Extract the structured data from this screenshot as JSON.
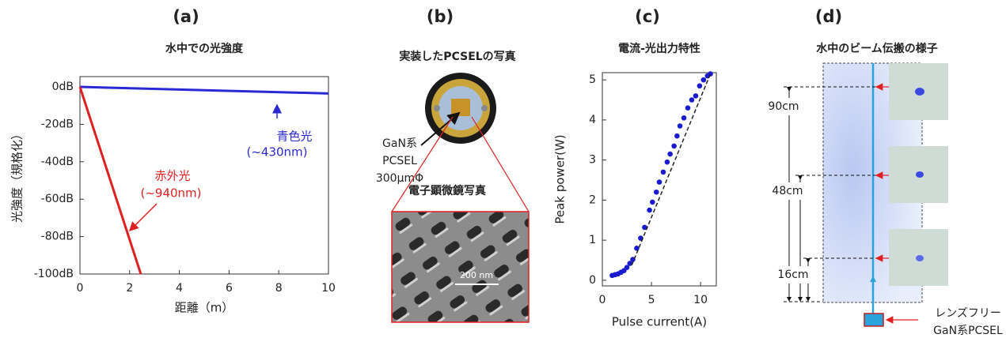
{
  "panel_labels": [
    "(a)",
    "(b)",
    "(c)",
    "(d)"
  ],
  "chart_data": [
    {
      "type": "line",
      "title": "水中での光強度",
      "x_label": "距離（m）",
      "y_label": "光強度（規格化）",
      "xlim": [
        0,
        10
      ],
      "xticks": [
        0,
        2,
        4,
        6,
        8,
        10
      ],
      "ylim": [
        -100,
        5.5
      ],
      "yticks": [
        {
          "value": 0,
          "label": "0dB"
        },
        {
          "value": -20,
          "label": "-20dB"
        },
        {
          "value": -40,
          "label": "-40dB"
        },
        {
          "value": -60,
          "label": "-60dB"
        },
        {
          "value": -80,
          "label": "-80dB"
        },
        {
          "value": -100,
          "label": "-100dB"
        }
      ],
      "series": [
        {
          "name": "青色光",
          "note": "(~430nm)",
          "color": "#2a2ad4",
          "x": [
            0,
            10
          ],
          "values": [
            0,
            -3.5
          ]
        },
        {
          "name": "赤外光",
          "note": "(~940nm)",
          "color": "#e02020",
          "x": [
            0,
            2.45
          ],
          "values": [
            0,
            -100
          ]
        }
      ]
    },
    {
      "type": "scatter",
      "title": "電流-光出力特性",
      "x_label": "Pulse current(A)",
      "y_label": "Peak power(W)",
      "xlim": [
        0,
        11.6
      ],
      "xticks": [
        0,
        5,
        10
      ],
      "ylim": [
        -0.14,
        5.18
      ],
      "yticks": [
        0,
        1,
        2,
        3,
        4,
        5
      ],
      "series": [
        {
          "color": "#1a1ad0",
          "x": [
            1.0,
            1.3,
            1.6,
            1.9,
            2.2,
            2.5,
            2.8,
            3.1,
            3.5,
            3.9,
            4.3,
            4.8,
            5.1,
            5.5,
            5.8,
            6.2,
            6.6,
            6.9,
            7.3,
            7.6,
            7.9,
            8.3,
            8.7,
            9.1,
            9.5,
            9.9,
            10.3,
            10.7,
            11.0
          ],
          "values": [
            0.12,
            0.14,
            0.16,
            0.2,
            0.24,
            0.32,
            0.42,
            0.52,
            0.8,
            1.05,
            1.32,
            1.75,
            1.95,
            2.2,
            2.45,
            2.7,
            2.95,
            3.15,
            3.35,
            3.6,
            3.85,
            4.05,
            4.3,
            4.5,
            4.6,
            4.85,
            5.0,
            5.1,
            5.15
          ]
        },
        {
          "type": "line",
          "dash": true,
          "color": "#222",
          "x": [
            3.0,
            11.0
          ],
          "values": [
            0.38,
            5.15
          ]
        }
      ]
    }
  ],
  "panel_b": {
    "title": "実装したPCSELの写真",
    "callout": [
      "GaN系",
      "PCSEL",
      "300μmΦ"
    ],
    "sem_title": "電子顕微鏡写真",
    "scale_bar": "200 nm"
  },
  "panel_d": {
    "title": "水中のビーム伝搬の様子",
    "distances": [
      "90cm",
      "48cm",
      "16cm"
    ],
    "source": [
      "レンズフリー",
      "GaN系PCSEL"
    ]
  }
}
